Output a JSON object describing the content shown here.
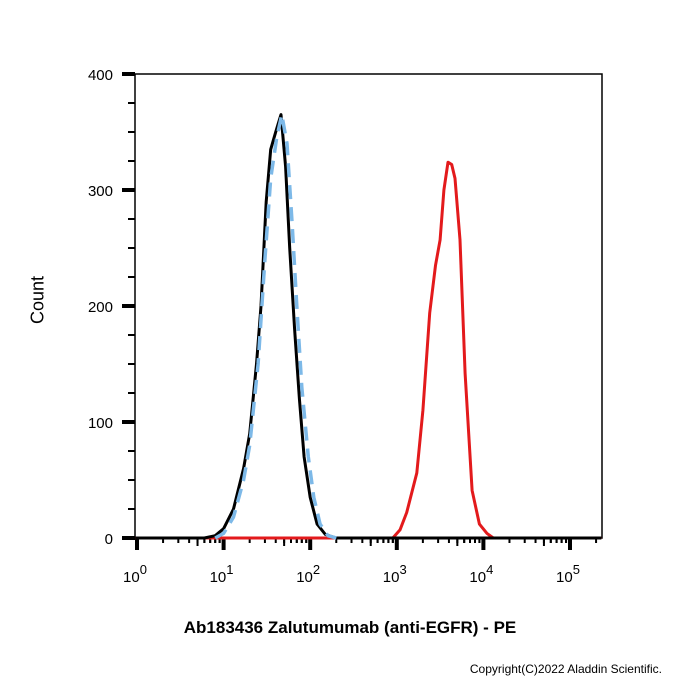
{
  "chart_data": {
    "type": "line",
    "title": "",
    "xlabel": "Ab183436 Zalutumumab (anti-EGFR) - PE",
    "ylabel": "Count",
    "xscale": "log",
    "xlim": [
      0.95,
      230000
    ],
    "ylim": [
      0,
      400
    ],
    "yticks": [
      0,
      100,
      200,
      300,
      400
    ],
    "xticks": [
      {
        "base": "10",
        "exp": "0"
      },
      {
        "base": "10",
        "exp": "1"
      },
      {
        "base": "10",
        "exp": "2"
      },
      {
        "base": "10",
        "exp": "3"
      },
      {
        "base": "10",
        "exp": "4"
      },
      {
        "base": "10",
        "exp": "5"
      }
    ],
    "grid": false,
    "series": [
      {
        "color": "#e31a1c",
        "style": "solid",
        "points": [
          [
            0.95,
            0
          ],
          [
            900,
            0
          ],
          [
            1090,
            7
          ],
          [
            1300,
            22
          ],
          [
            1700,
            56
          ],
          [
            2000,
            110
          ],
          [
            2400,
            194
          ],
          [
            2800,
            235
          ],
          [
            3160,
            257
          ],
          [
            3500,
            300
          ],
          [
            3900,
            324
          ],
          [
            4300,
            322
          ],
          [
            4700,
            310
          ],
          [
            5370,
            257
          ],
          [
            6150,
            142
          ],
          [
            7400,
            41
          ],
          [
            9000,
            12
          ],
          [
            11000,
            4
          ],
          [
            13000,
            0
          ],
          [
            230000,
            0
          ]
        ]
      },
      {
        "color": "#000000",
        "style": "solid",
        "points": [
          [
            0.95,
            0
          ],
          [
            6,
            0
          ],
          [
            8,
            2
          ],
          [
            10,
            8
          ],
          [
            13,
            25
          ],
          [
            17,
            60
          ],
          [
            20,
            90
          ],
          [
            24,
            150
          ],
          [
            27,
            200
          ],
          [
            31,
            290
          ],
          [
            35,
            335
          ],
          [
            40,
            350
          ],
          [
            46,
            365
          ],
          [
            52,
            320
          ],
          [
            58,
            250
          ],
          [
            66,
            180
          ],
          [
            75,
            120
          ],
          [
            85,
            70
          ],
          [
            100,
            35
          ],
          [
            120,
            12
          ],
          [
            150,
            3
          ],
          [
            200,
            0
          ],
          [
            230000,
            0
          ]
        ]
      },
      {
        "color": "#7db9e8",
        "style": "dashed",
        "points": [
          [
            8,
            0
          ],
          [
            10,
            4
          ],
          [
            13,
            18
          ],
          [
            17,
            50
          ],
          [
            20,
            80
          ],
          [
            25,
            150
          ],
          [
            30,
            240
          ],
          [
            35,
            310
          ],
          [
            41,
            345
          ],
          [
            47,
            365
          ],
          [
            54,
            340
          ],
          [
            62,
            270
          ],
          [
            70,
            200
          ],
          [
            80,
            130
          ],
          [
            95,
            70
          ],
          [
            110,
            35
          ],
          [
            130,
            12
          ],
          [
            160,
            2
          ],
          [
            200,
            0
          ]
        ]
      }
    ]
  },
  "copyright": "Copyright(C)2022 Aladdin Scientific."
}
